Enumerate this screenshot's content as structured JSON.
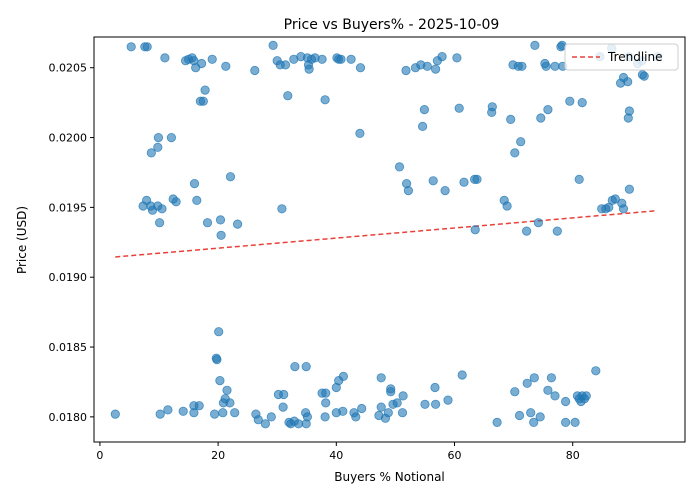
{
  "chart_data": {
    "type": "scatter",
    "title": "Price vs Buyers% - 2025-10-09",
    "xlabel": "Buyers % Notional",
    "ylabel": "Price (USD)",
    "xlim": [
      -1.0,
      99.0
    ],
    "ylim": [
      0.01782,
      0.02072
    ],
    "xticks": [
      0,
      20,
      40,
      60,
      80
    ],
    "xtick_labels": [
      "0",
      "20",
      "40",
      "60",
      "80"
    ],
    "yticks": [
      0.018,
      0.0185,
      0.019,
      0.0195,
      0.02,
      0.0205
    ],
    "ytick_labels": [
      "0.0180",
      "0.0185",
      "0.0190",
      "0.0195",
      "0.0200",
      "0.0205"
    ],
    "grid": false,
    "legend": {
      "placement": "top-right",
      "entries": [
        "Trendline"
      ]
    },
    "colors": {
      "points": "#1f77b4",
      "trendline": "#e8413a"
    },
    "trendline": {
      "name": "Trendline",
      "x": [
        2.6,
        93.9
      ],
      "y": [
        0.019145,
        0.019475
      ]
    },
    "points": [
      [
        5.3,
        0.02065
      ],
      [
        7.6,
        0.02065
      ],
      [
        8.0,
        0.02065
      ],
      [
        11.0,
        0.02057
      ],
      [
        14.5,
        0.02055
      ],
      [
        15.0,
        0.02056
      ],
      [
        15.6,
        0.02057
      ],
      [
        15.9,
        0.02055
      ],
      [
        16.2,
        0.0205
      ],
      [
        17.2,
        0.02053
      ],
      [
        19.0,
        0.02056
      ],
      [
        21.3,
        0.02051
      ],
      [
        17.0,
        0.02026
      ],
      [
        17.5,
        0.02026
      ],
      [
        17.8,
        0.02034
      ],
      [
        26.2,
        0.02048
      ],
      [
        29.3,
        0.02066
      ],
      [
        30.0,
        0.02055
      ],
      [
        30.5,
        0.02052
      ],
      [
        31.4,
        0.02052
      ],
      [
        32.8,
        0.02056
      ],
      [
        34.0,
        0.02058
      ],
      [
        35.1,
        0.02057
      ],
      [
        35.3,
        0.02052
      ],
      [
        35.4,
        0.02049
      ],
      [
        35.8,
        0.02056
      ],
      [
        36.4,
        0.02057
      ],
      [
        37.6,
        0.02056
      ],
      [
        40.1,
        0.02057
      ],
      [
        40.4,
        0.02056
      ],
      [
        40.8,
        0.02056
      ],
      [
        42.5,
        0.02056
      ],
      [
        44.1,
        0.0205
      ],
      [
        31.8,
        0.0203
      ],
      [
        38.1,
        0.02027
      ],
      [
        51.8,
        0.02048
      ],
      [
        53.4,
        0.0205
      ],
      [
        54.3,
        0.02052
      ],
      [
        55.4,
        0.02051
      ],
      [
        56.8,
        0.02049
      ],
      [
        57.1,
        0.02055
      ],
      [
        57.9,
        0.02058
      ],
      [
        60.4,
        0.02057
      ],
      [
        69.9,
        0.02052
      ],
      [
        70.8,
        0.02051
      ],
      [
        71.4,
        0.02051
      ],
      [
        73.6,
        0.02066
      ],
      [
        75.3,
        0.02053
      ],
      [
        75.5,
        0.02051
      ],
      [
        77.0,
        0.02051
      ],
      [
        78.0,
        0.02065
      ],
      [
        78.2,
        0.02066
      ],
      [
        78.3,
        0.02051
      ],
      [
        84.6,
        0.02058
      ],
      [
        86.6,
        0.02064
      ],
      [
        88.1,
        0.02039
      ],
      [
        88.6,
        0.02043
      ],
      [
        89.3,
        0.0204
      ],
      [
        89.5,
        0.02058
      ],
      [
        91.0,
        0.02053
      ],
      [
        91.7,
        0.02055
      ],
      [
        91.8,
        0.02045
      ],
      [
        92.1,
        0.02044
      ],
      [
        94.4,
        0.02058
      ],
      [
        9.9,
        0.02
      ],
      [
        12.1,
        0.02
      ],
      [
        9.8,
        0.01993
      ],
      [
        8.7,
        0.01989
      ],
      [
        54.9,
        0.0202
      ],
      [
        54.6,
        0.02008
      ],
      [
        44.0,
        0.02003
      ],
      [
        60.8,
        0.02021
      ],
      [
        66.4,
        0.02022
      ],
      [
        66.3,
        0.02018
      ],
      [
        69.5,
        0.02013
      ],
      [
        71.2,
        0.01997
      ],
      [
        70.2,
        0.01989
      ],
      [
        74.6,
        0.02014
      ],
      [
        75.8,
        0.0202
      ],
      [
        79.5,
        0.02026
      ],
      [
        81.6,
        0.02025
      ],
      [
        89.4,
        0.02014
      ],
      [
        89.6,
        0.02019
      ],
      [
        7.3,
        0.01951
      ],
      [
        7.9,
        0.01955
      ],
      [
        8.6,
        0.01951
      ],
      [
        8.9,
        0.01948
      ],
      [
        9.8,
        0.01951
      ],
      [
        10.5,
        0.01949
      ],
      [
        10.1,
        0.01939
      ],
      [
        12.4,
        0.01956
      ],
      [
        12.9,
        0.01954
      ],
      [
        16.0,
        0.01967
      ],
      [
        16.4,
        0.01955
      ],
      [
        18.2,
        0.01939
      ],
      [
        20.4,
        0.01941
      ],
      [
        20.5,
        0.0193
      ],
      [
        22.1,
        0.01972
      ],
      [
        23.3,
        0.01938
      ],
      [
        30.8,
        0.01949
      ],
      [
        50.7,
        0.01979
      ],
      [
        51.9,
        0.01967
      ],
      [
        52.2,
        0.01962
      ],
      [
        56.4,
        0.01969
      ],
      [
        58.4,
        0.01962
      ],
      [
        61.6,
        0.01968
      ],
      [
        63.4,
        0.0197
      ],
      [
        63.5,
        0.01934
      ],
      [
        63.8,
        0.0197
      ],
      [
        68.4,
        0.01955
      ],
      [
        68.9,
        0.01951
      ],
      [
        72.2,
        0.01933
      ],
      [
        74.2,
        0.01939
      ],
      [
        77.4,
        0.01933
      ],
      [
        81.1,
        0.0197
      ],
      [
        84.9,
        0.01949
      ],
      [
        85.6,
        0.01949
      ],
      [
        86.1,
        0.0195
      ],
      [
        86.7,
        0.01955
      ],
      [
        87.2,
        0.01956
      ],
      [
        88.3,
        0.01953
      ],
      [
        88.6,
        0.01949
      ],
      [
        89.6,
        0.01963
      ],
      [
        20.1,
        0.01861
      ],
      [
        19.7,
        0.01842
      ],
      [
        19.8,
        0.01841
      ],
      [
        20.3,
        0.01826
      ],
      [
        21.5,
        0.01819
      ],
      [
        21.2,
        0.01813
      ],
      [
        20.9,
        0.0181
      ],
      [
        22.0,
        0.0181
      ],
      [
        15.9,
        0.01808
      ],
      [
        16.8,
        0.01808
      ],
      [
        11.5,
        0.01805
      ],
      [
        14.1,
        0.01804
      ],
      [
        10.2,
        0.01802
      ],
      [
        15.9,
        0.01803
      ],
      [
        19.4,
        0.01802
      ],
      [
        20.8,
        0.01803
      ],
      [
        22.8,
        0.01803
      ],
      [
        2.6,
        0.01802
      ],
      [
        26.4,
        0.01802
      ],
      [
        26.8,
        0.01798
      ],
      [
        28.0,
        0.01795
      ],
      [
        29.0,
        0.018
      ],
      [
        30.2,
        0.01816
      ],
      [
        31.1,
        0.01816
      ],
      [
        31.0,
        0.01807
      ],
      [
        32.3,
        0.01795
      ],
      [
        32.0,
        0.01796
      ],
      [
        32.9,
        0.01797
      ],
      [
        33.6,
        0.01795
      ],
      [
        34.9,
        0.01795
      ],
      [
        34.8,
        0.01803
      ],
      [
        35.1,
        0.018
      ],
      [
        33.0,
        0.01836
      ],
      [
        34.9,
        0.01836
      ],
      [
        37.6,
        0.01817
      ],
      [
        38.2,
        0.01817
      ],
      [
        38.2,
        0.0181
      ],
      [
        38.1,
        0.018
      ],
      [
        40.0,
        0.01821
      ],
      [
        40.4,
        0.01826
      ],
      [
        41.2,
        0.01829
      ],
      [
        41.1,
        0.01804
      ],
      [
        40.0,
        0.01803
      ],
      [
        43.0,
        0.01803
      ],
      [
        43.3,
        0.018
      ],
      [
        44.3,
        0.01806
      ],
      [
        47.2,
        0.01801
      ],
      [
        47.6,
        0.01828
      ],
      [
        47.6,
        0.01807
      ],
      [
        48.3,
        0.01799
      ],
      [
        48.8,
        0.01803
      ],
      [
        49.2,
        0.0182
      ],
      [
        49.2,
        0.01818
      ],
      [
        49.6,
        0.01809
      ],
      [
        50.3,
        0.0181
      ],
      [
        51.3,
        0.01815
      ],
      [
        51.2,
        0.01803
      ],
      [
        55.0,
        0.01809
      ],
      [
        56.7,
        0.01821
      ],
      [
        56.8,
        0.01809
      ],
      [
        58.9,
        0.01812
      ],
      [
        61.3,
        0.0183
      ],
      [
        67.2,
        0.01796
      ],
      [
        70.2,
        0.01818
      ],
      [
        71.0,
        0.01801
      ],
      [
        72.3,
        0.01824
      ],
      [
        72.9,
        0.01803
      ],
      [
        73.5,
        0.01828
      ],
      [
        73.4,
        0.01796
      ],
      [
        74.5,
        0.018
      ],
      [
        75.8,
        0.01819
      ],
      [
        76.4,
        0.01828
      ],
      [
        77.0,
        0.01815
      ],
      [
        78.8,
        0.01811
      ],
      [
        78.8,
        0.01796
      ],
      [
        80.4,
        0.01796
      ],
      [
        80.8,
        0.01815
      ],
      [
        81.1,
        0.01813
      ],
      [
        81.4,
        0.01811
      ],
      [
        81.6,
        0.01815
      ],
      [
        82.0,
        0.01813
      ],
      [
        82.3,
        0.01815
      ],
      [
        83.9,
        0.01833
      ]
    ]
  }
}
